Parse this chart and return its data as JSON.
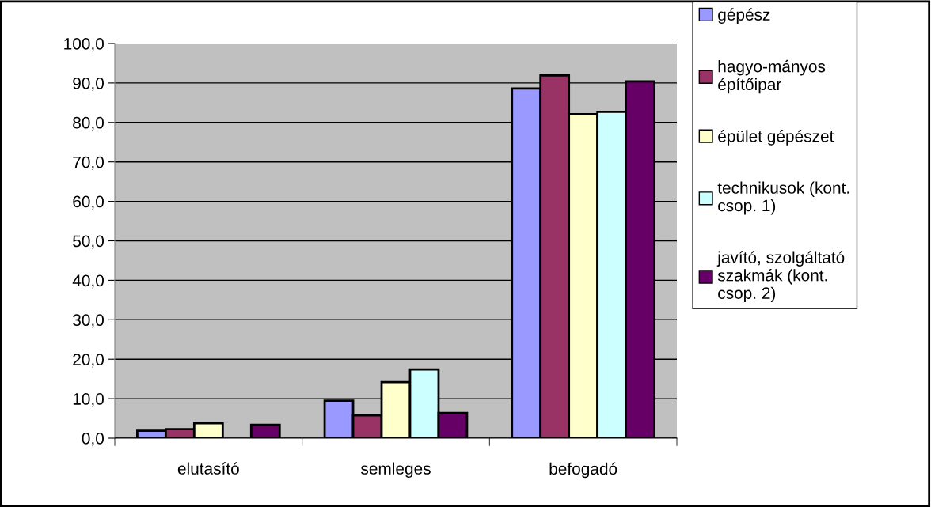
{
  "chart_data": {
    "type": "bar",
    "categories": [
      "elutasító",
      "semleges",
      "befogadó"
    ],
    "series": [
      {
        "name": "gépész",
        "color": "#9999ff",
        "values": [
          1.9,
          9.5,
          88.6
        ]
      },
      {
        "name": "hagyo-mányos építőipar",
        "color": "#993366",
        "values": [
          2.3,
          5.8,
          91.9
        ]
      },
      {
        "name": "épület gépészet",
        "color": "#ffffcc",
        "values": [
          3.8,
          14.2,
          82.1
        ]
      },
      {
        "name": "technikusok (kont. csop. 1)",
        "color": "#ccffff",
        "values": [
          null,
          17.4,
          82.7
        ]
      },
      {
        "name": "javító, szolgáltató szakmák (kont. csop. 2)",
        "color": "#660066",
        "values": [
          3.4,
          6.4,
          90.4
        ]
      }
    ],
    "ylim": [
      0,
      100
    ],
    "yticks": [
      {
        "value": 0,
        "label": "0,0"
      },
      {
        "value": 10,
        "label": "10,0"
      },
      {
        "value": 20,
        "label": "20,0"
      },
      {
        "value": 30,
        "label": "30,0"
      },
      {
        "value": 40,
        "label": "40,0"
      },
      {
        "value": 50,
        "label": "50,0"
      },
      {
        "value": 60,
        "label": "60,0"
      },
      {
        "value": 70,
        "label": "70,0"
      },
      {
        "value": 80,
        "label": "80,0"
      },
      {
        "value": 90,
        "label": "90,0"
      },
      {
        "value": 100,
        "label": "100,0"
      }
    ],
    "grid": "y",
    "legend": "right"
  }
}
